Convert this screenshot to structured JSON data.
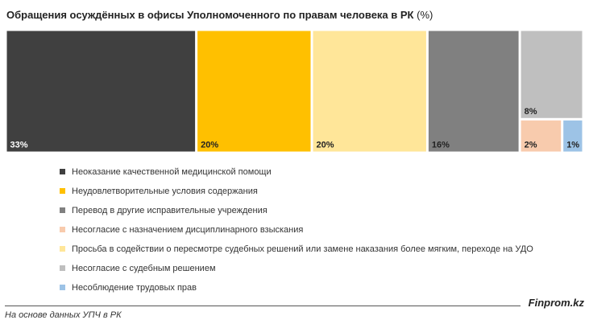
{
  "title": "Обращения осуждённых в офисы Уполномоченного по правам человека в РК",
  "title_unit": "(%)",
  "source": "На основе данных УПЧ в РК",
  "brand": "Finprom.kz",
  "chart_data": {
    "type": "treemap",
    "title": "Обращения осуждённых в офисы Уполномоченного по правам человека в РК (%)",
    "unit": "%",
    "items": [
      {
        "name": "Неоказание качественной медицинской помощи",
        "value": 33,
        "label": "33%",
        "color": "#404040",
        "label_color": "#ffffff"
      },
      {
        "name": "Неудовлетворительные условия содержания",
        "value": 20,
        "label": "20%",
        "color": "#ffc000",
        "label_color": "#222222"
      },
      {
        "name": "Просьба в содействии о пересмотре судебных решений или замене наказания более мягким, переходе на УДО",
        "value": 20,
        "label": "20%",
        "color": "#ffe699",
        "label_color": "#222222"
      },
      {
        "name": "Перевод в другие исправительные учреждения",
        "value": 16,
        "label": "16%",
        "color": "#808080",
        "label_color": "#222222"
      },
      {
        "name": "Несогласие с судебным решением",
        "value": 8,
        "label": "8%",
        "color": "#bfbfbf",
        "label_color": "#222222"
      },
      {
        "name": "Несогласие с назначением дисциплинарного взыскания",
        "value": 2,
        "label": "2%",
        "color": "#f8cbad",
        "label_color": "#222222"
      },
      {
        "name": "Несоблюдение трудовых прав",
        "value": 1,
        "label": "1%",
        "color": "#9dc3e6",
        "label_color": "#222222"
      }
    ],
    "legend": {
      "position": "bottom",
      "entries": [
        {
          "label": "Неоказание качественной медицинской помощи",
          "color": "#404040"
        },
        {
          "label": "Неудовлетворительные условия содержания",
          "color": "#ffc000"
        },
        {
          "label": "Перевод в другие исправительные учреждения",
          "color": "#808080"
        },
        {
          "label": "Несогласие с назначением дисциплинарного взыскания",
          "color": "#f8cbad"
        },
        {
          "label": "Просьба в содействии о пересмотре судебных решений или замене наказания более мягким, переходе на УДО",
          "color": "#ffe699"
        },
        {
          "label": "Несогласие с судебным решением",
          "color": "#bfbfbf"
        },
        {
          "label": "Несоблюдение трудовых прав",
          "color": "#9dc3e6"
        }
      ]
    }
  }
}
